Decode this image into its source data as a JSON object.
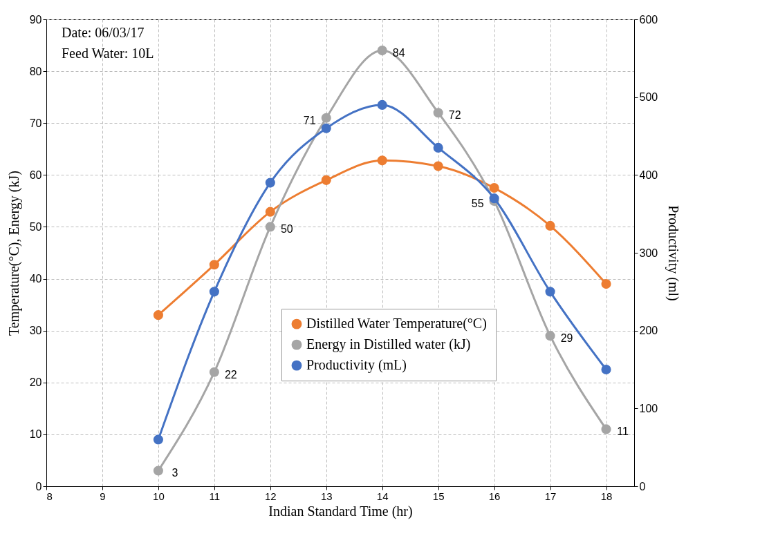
{
  "chart_data": {
    "type": "line",
    "xlabel": "Indian Standard Time (hr)",
    "ylabel": "Temperature(°C), Energy (kJ)",
    "y2label": "Productivity (ml)",
    "x": [
      10,
      11,
      12,
      13,
      14,
      15,
      16,
      17,
      18
    ],
    "series": [
      {
        "name": "Distilled Water Temperature(°C)",
        "color": "#ed7d31",
        "values": [
          33,
          42.7,
          52.9,
          59,
          62.8,
          61.7,
          57.5,
          50.2,
          39
        ]
      },
      {
        "name": "Energy in Distilled water (kJ)",
        "color": "#a5a5a5",
        "values": [
          3,
          22,
          50,
          71,
          84,
          72,
          55,
          29,
          11
        ],
        "value_labels": [
          "3",
          "22",
          "50",
          "71",
          "84",
          "72",
          "55",
          "29",
          "11"
        ]
      },
      {
        "name": "Productivity (mL)",
        "color": "#4472c4",
        "axis": "y2",
        "values": [
          60,
          250,
          390,
          460,
          490,
          435,
          370,
          250,
          150
        ]
      }
    ],
    "xlim": [
      8,
      18.5
    ],
    "xticks": [
      8,
      9,
      10,
      11,
      12,
      13,
      14,
      15,
      16,
      17,
      18
    ],
    "ylim": [
      0,
      90
    ],
    "yticks": [
      0,
      10,
      20,
      30,
      40,
      50,
      60,
      70,
      80,
      90
    ],
    "y2lim": [
      0,
      600
    ],
    "y2ticks": [
      0,
      100,
      200,
      300,
      400,
      500,
      600
    ],
    "annotations": [
      "Date: 06/03/17",
      "Feed Water: 10L"
    ],
    "grid": true,
    "legend": "bottom",
    "marker": "circle",
    "line_style": "solid"
  }
}
